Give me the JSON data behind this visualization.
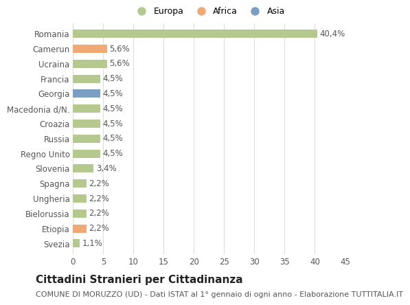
{
  "categories": [
    "Romania",
    "Camerun",
    "Ucraina",
    "Francia",
    "Georgia",
    "Macedonia d/N.",
    "Croazia",
    "Russia",
    "Regno Unito",
    "Slovenia",
    "Spagna",
    "Ungheria",
    "Bielorussia",
    "Etiopia",
    "Svezia"
  ],
  "values": [
    40.4,
    5.6,
    5.6,
    4.5,
    4.5,
    4.5,
    4.5,
    4.5,
    4.5,
    3.4,
    2.2,
    2.2,
    2.2,
    2.2,
    1.1
  ],
  "labels": [
    "40,4%",
    "5,6%",
    "5,6%",
    "4,5%",
    "4,5%",
    "4,5%",
    "4,5%",
    "4,5%",
    "4,5%",
    "3,4%",
    "2,2%",
    "2,2%",
    "2,2%",
    "2,2%",
    "1,1%"
  ],
  "colors": [
    "#b5c98e",
    "#f0a875",
    "#b5c98e",
    "#b5c98e",
    "#7b9fc4",
    "#b5c98e",
    "#b5c98e",
    "#b5c98e",
    "#b5c98e",
    "#b5c98e",
    "#b5c98e",
    "#b5c98e",
    "#b5c98e",
    "#f0a875",
    "#b5c98e"
  ],
  "legend_labels": [
    "Europa",
    "Africa",
    "Asia"
  ],
  "legend_colors": [
    "#b5c98e",
    "#f0a875",
    "#7b9fc4"
  ],
  "xlim": [
    0,
    45
  ],
  "xticks": [
    0,
    5,
    10,
    15,
    20,
    25,
    30,
    35,
    40,
    45
  ],
  "title": "Cittadini Stranieri per Cittadinanza",
  "subtitle": "COMUNE DI MORUZZO (UD) - Dati ISTAT al 1° gennaio di ogni anno - Elaborazione TUTTITALIA.IT",
  "background_color": "#ffffff",
  "grid_color": "#dddddd",
  "bar_height": 0.55,
  "label_fontsize": 8.5,
  "tick_fontsize": 8.5,
  "title_fontsize": 11,
  "subtitle_fontsize": 8
}
